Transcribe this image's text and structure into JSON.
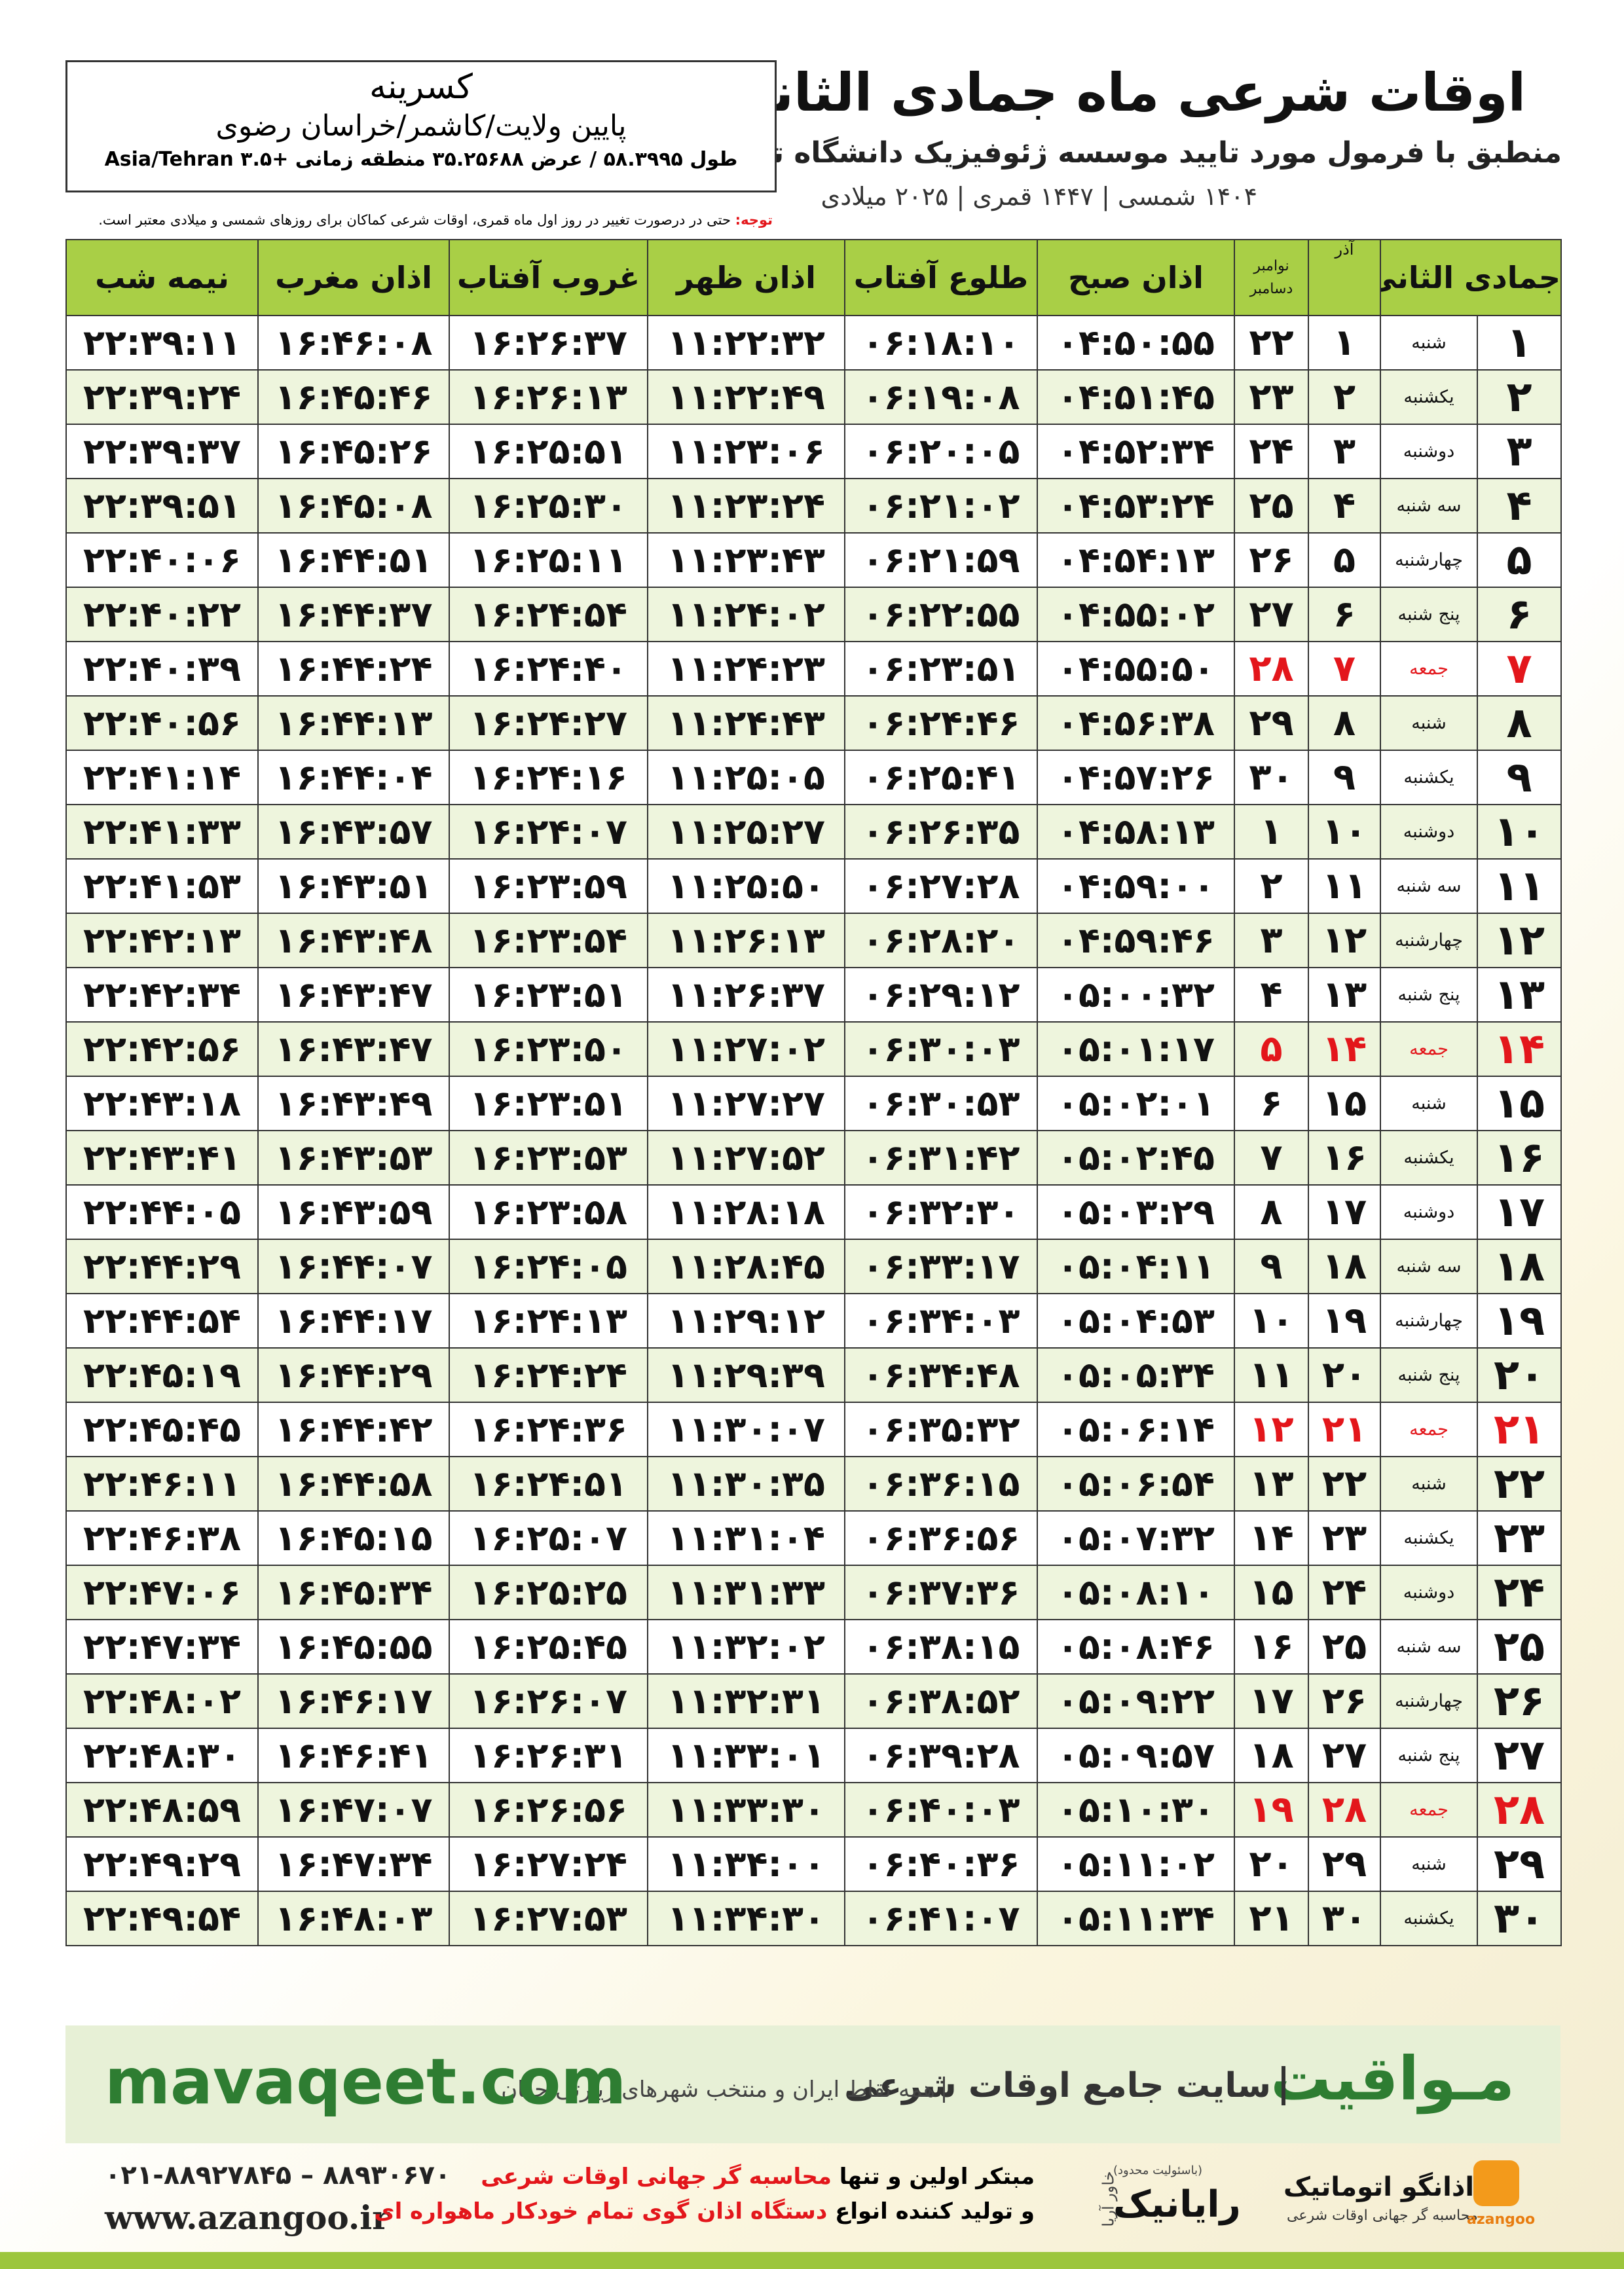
{
  "header": {
    "title": "اوقات شرعی ماه جمادی الثانی",
    "subtitle": "منطبق با فرمول مورد تایید موسسه ژئوفیزیک دانشگاه تهران",
    "date_line": "۱۴۰۴ شمسی | ۱۴۴۷ قمری | ۲۰۲۵ میلادی"
  },
  "location": {
    "name": "کسرینه",
    "region": "پایین ولایت/کاشمر/خراسان رضوی",
    "coords": "طول ۵۸.۳۹۹۵ / عرض ۳۵.۲۵۶۸۸ منطقه زمانی +۳.۵ Asia/Tehran"
  },
  "note": {
    "label": "توجه:",
    "text": "حتی در درصورت تغییر در روز اول ماه قمری، اوقات شرعی کماکان برای روزهای شمسی و میلادی معتبر است."
  },
  "table": {
    "header_color": "#a9cf46",
    "stripe_color": "#eef5dd",
    "holiday_color": "#e3161b",
    "columns": [
      "جمادی الثانی",
      "",
      "آذر",
      [
        "نوامبر",
        "دسامبر"
      ],
      "اذان صبح",
      "طلوع آفتاب",
      "اذان ظهر",
      "غروب آفتاب",
      "اذان مغرب",
      "نیمه شب"
    ],
    "rows": [
      {
        "cells": [
          "۱",
          "شنبه",
          "۱",
          "۲۲",
          "۰۴:۵۰:۵۵",
          "۰۶:۱۸:۱۰",
          "۱۱:۲۲:۳۲",
          "۱۶:۲۶:۳۷",
          "۱۶:۴۶:۰۸",
          "۲۲:۳۹:۱۱"
        ]
      },
      {
        "cells": [
          "۲",
          "یکشنبه",
          "۲",
          "۲۳",
          "۰۴:۵۱:۴۵",
          "۰۶:۱۹:۰۸",
          "۱۱:۲۲:۴۹",
          "۱۶:۲۶:۱۳",
          "۱۶:۴۵:۴۶",
          "۲۲:۳۹:۲۴"
        ]
      },
      {
        "cells": [
          "۳",
          "دوشنبه",
          "۳",
          "۲۴",
          "۰۴:۵۲:۳۴",
          "۰۶:۲۰:۰۵",
          "۱۱:۲۳:۰۶",
          "۱۶:۲۵:۵۱",
          "۱۶:۴۵:۲۶",
          "۲۲:۳۹:۳۷"
        ]
      },
      {
        "cells": [
          "۴",
          "سه شنبه",
          "۴",
          "۲۵",
          "۰۴:۵۳:۲۴",
          "۰۶:۲۱:۰۲",
          "۱۱:۲۳:۲۴",
          "۱۶:۲۵:۳۰",
          "۱۶:۴۵:۰۸",
          "۲۲:۳۹:۵۱"
        ]
      },
      {
        "cells": [
          "۵",
          "چهارشنبه",
          "۵",
          "۲۶",
          "۰۴:۵۴:۱۳",
          "۰۶:۲۱:۵۹",
          "۱۱:۲۳:۴۳",
          "۱۶:۲۵:۱۱",
          "۱۶:۴۴:۵۱",
          "۲۲:۴۰:۰۶"
        ]
      },
      {
        "cells": [
          "۶",
          "پنج شنبه",
          "۶",
          "۲۷",
          "۰۴:۵۵:۰۲",
          "۰۶:۲۲:۵۵",
          "۱۱:۲۴:۰۲",
          "۱۶:۲۴:۵۴",
          "۱۶:۴۴:۳۷",
          "۲۲:۴۰:۲۲"
        ]
      },
      {
        "cells": [
          "۷",
          "جمعه",
          "۷",
          "۲۸",
          "۰۴:۵۵:۵۰",
          "۰۶:۲۳:۵۱",
          "۱۱:۲۴:۲۳",
          "۱۶:۲۴:۴۰",
          "۱۶:۴۴:۲۴",
          "۲۲:۴۰:۳۹"
        ],
        "holiday": true
      },
      {
        "cells": [
          "۸",
          "شنبه",
          "۸",
          "۲۹",
          "۰۴:۵۶:۳۸",
          "۰۶:۲۴:۴۶",
          "۱۱:۲۴:۴۳",
          "۱۶:۲۴:۲۷",
          "۱۶:۴۴:۱۳",
          "۲۲:۴۰:۵۶"
        ]
      },
      {
        "cells": [
          "۹",
          "یکشنبه",
          "۹",
          "۳۰",
          "۰۴:۵۷:۲۶",
          "۰۶:۲۵:۴۱",
          "۱۱:۲۵:۰۵",
          "۱۶:۲۴:۱۶",
          "۱۶:۴۴:۰۴",
          "۲۲:۴۱:۱۴"
        ]
      },
      {
        "cells": [
          "۱۰",
          "دوشنبه",
          "۱۰",
          "۱",
          "۰۴:۵۸:۱۳",
          "۰۶:۲۶:۳۵",
          "۱۱:۲۵:۲۷",
          "۱۶:۲۴:۰۷",
          "۱۶:۴۳:۵۷",
          "۲۲:۴۱:۳۳"
        ]
      },
      {
        "cells": [
          "۱۱",
          "سه شنبه",
          "۱۱",
          "۲",
          "۰۴:۵۹:۰۰",
          "۰۶:۲۷:۲۸",
          "۱۱:۲۵:۵۰",
          "۱۶:۲۳:۵۹",
          "۱۶:۴۳:۵۱",
          "۲۲:۴۱:۵۳"
        ]
      },
      {
        "cells": [
          "۱۲",
          "چهارشنبه",
          "۱۲",
          "۳",
          "۰۴:۵۹:۴۶",
          "۰۶:۲۸:۲۰",
          "۱۱:۲۶:۱۳",
          "۱۶:۲۳:۵۴",
          "۱۶:۴۳:۴۸",
          "۲۲:۴۲:۱۳"
        ]
      },
      {
        "cells": [
          "۱۳",
          "پنج شنبه",
          "۱۳",
          "۴",
          "۰۵:۰۰:۳۲",
          "۰۶:۲۹:۱۲",
          "۱۱:۲۶:۳۷",
          "۱۶:۲۳:۵۱",
          "۱۶:۴۳:۴۷",
          "۲۲:۴۲:۳۴"
        ]
      },
      {
        "cells": [
          "۱۴",
          "جمعه",
          "۱۴",
          "۵",
          "۰۵:۰۱:۱۷",
          "۰۶:۳۰:۰۳",
          "۱۱:۲۷:۰۲",
          "۱۶:۲۳:۵۰",
          "۱۶:۴۳:۴۷",
          "۲۲:۴۲:۵۶"
        ],
        "holiday": true
      },
      {
        "cells": [
          "۱۵",
          "شنبه",
          "۱۵",
          "۶",
          "۰۵:۰۲:۰۱",
          "۰۶:۳۰:۵۳",
          "۱۱:۲۷:۲۷",
          "۱۶:۲۳:۵۱",
          "۱۶:۴۳:۴۹",
          "۲۲:۴۳:۱۸"
        ]
      },
      {
        "cells": [
          "۱۶",
          "یکشنبه",
          "۱۶",
          "۷",
          "۰۵:۰۲:۴۵",
          "۰۶:۳۱:۴۲",
          "۱۱:۲۷:۵۲",
          "۱۶:۲۳:۵۳",
          "۱۶:۴۳:۵۳",
          "۲۲:۴۳:۴۱"
        ]
      },
      {
        "cells": [
          "۱۷",
          "دوشنبه",
          "۱۷",
          "۸",
          "۰۵:۰۳:۲۹",
          "۰۶:۳۲:۳۰",
          "۱۱:۲۸:۱۸",
          "۱۶:۲۳:۵۸",
          "۱۶:۴۳:۵۹",
          "۲۲:۴۴:۰۵"
        ]
      },
      {
        "cells": [
          "۱۸",
          "سه شنبه",
          "۱۸",
          "۹",
          "۰۵:۰۴:۱۱",
          "۰۶:۳۳:۱۷",
          "۱۱:۲۸:۴۵",
          "۱۶:۲۴:۰۵",
          "۱۶:۴۴:۰۷",
          "۲۲:۴۴:۲۹"
        ]
      },
      {
        "cells": [
          "۱۹",
          "چهارشنبه",
          "۱۹",
          "۱۰",
          "۰۵:۰۴:۵۳",
          "۰۶:۳۴:۰۳",
          "۱۱:۲۹:۱۲",
          "۱۶:۲۴:۱۳",
          "۱۶:۴۴:۱۷",
          "۲۲:۴۴:۵۴"
        ]
      },
      {
        "cells": [
          "۲۰",
          "پنج شنبه",
          "۲۰",
          "۱۱",
          "۰۵:۰۵:۳۴",
          "۰۶:۳۴:۴۸",
          "۱۱:۲۹:۳۹",
          "۱۶:۲۴:۲۴",
          "۱۶:۴۴:۲۹",
          "۲۲:۴۵:۱۹"
        ]
      },
      {
        "cells": [
          "۲۱",
          "جمعه",
          "۲۱",
          "۱۲",
          "۰۵:۰۶:۱۴",
          "۰۶:۳۵:۳۲",
          "۱۱:۳۰:۰۷",
          "۱۶:۲۴:۳۶",
          "۱۶:۴۴:۴۲",
          "۲۲:۴۵:۴۵"
        ],
        "holiday": true
      },
      {
        "cells": [
          "۲۲",
          "شنبه",
          "۲۲",
          "۱۳",
          "۰۵:۰۶:۵۴",
          "۰۶:۳۶:۱۵",
          "۱۱:۳۰:۳۵",
          "۱۶:۲۴:۵۱",
          "۱۶:۴۴:۵۸",
          "۲۲:۴۶:۱۱"
        ]
      },
      {
        "cells": [
          "۲۳",
          "یکشنبه",
          "۲۳",
          "۱۴",
          "۰۵:۰۷:۳۲",
          "۰۶:۳۶:۵۶",
          "۱۱:۳۱:۰۴",
          "۱۶:۲۵:۰۷",
          "۱۶:۴۵:۱۵",
          "۲۲:۴۶:۳۸"
        ]
      },
      {
        "cells": [
          "۲۴",
          "دوشنبه",
          "۲۴",
          "۱۵",
          "۰۵:۰۸:۱۰",
          "۰۶:۳۷:۳۶",
          "۱۱:۳۱:۳۳",
          "۱۶:۲۵:۲۵",
          "۱۶:۴۵:۳۴",
          "۲۲:۴۷:۰۶"
        ]
      },
      {
        "cells": [
          "۲۵",
          "سه شنبه",
          "۲۵",
          "۱۶",
          "۰۵:۰۸:۴۶",
          "۰۶:۳۸:۱۵",
          "۱۱:۳۲:۰۲",
          "۱۶:۲۵:۴۵",
          "۱۶:۴۵:۵۵",
          "۲۲:۴۷:۳۴"
        ]
      },
      {
        "cells": [
          "۲۶",
          "چهارشنبه",
          "۲۶",
          "۱۷",
          "۰۵:۰۹:۲۲",
          "۰۶:۳۸:۵۲",
          "۱۱:۳۲:۳۱",
          "۱۶:۲۶:۰۷",
          "۱۶:۴۶:۱۷",
          "۲۲:۴۸:۰۲"
        ]
      },
      {
        "cells": [
          "۲۷",
          "پنج شنبه",
          "۲۷",
          "۱۸",
          "۰۵:۰۹:۵۷",
          "۰۶:۳۹:۲۸",
          "۱۱:۳۳:۰۱",
          "۱۶:۲۶:۳۱",
          "۱۶:۴۶:۴۱",
          "۲۲:۴۸:۳۰"
        ]
      },
      {
        "cells": [
          "۲۸",
          "جمعه",
          "۲۸",
          "۱۹",
          "۰۵:۱۰:۳۰",
          "۰۶:۴۰:۰۳",
          "۱۱:۳۳:۳۰",
          "۱۶:۲۶:۵۶",
          "۱۶:۴۷:۰۷",
          "۲۲:۴۸:۵۹"
        ],
        "holiday": true
      },
      {
        "cells": [
          "۲۹",
          "شنبه",
          "۲۹",
          "۲۰",
          "۰۵:۱۱:۰۲",
          "۰۶:۴۰:۳۶",
          "۱۱:۳۴:۰۰",
          "۱۶:۲۷:۲۴",
          "۱۶:۴۷:۳۴",
          "۲۲:۴۹:۲۹"
        ]
      },
      {
        "cells": [
          "۳۰",
          "یکشنبه",
          "۳۰",
          "۲۱",
          "۰۵:۱۱:۳۴",
          "۰۶:۴۱:۰۷",
          "۱۱:۳۴:۳۰",
          "۱۶:۲۷:۵۳",
          "۱۶:۴۸:۰۳",
          "۲۲:۴۹:۵۴"
        ]
      }
    ]
  },
  "banner": {
    "url": "mavaqeet.com",
    "brand": "مـواقیت",
    "tagline": "سایت جامع اوقات شرعی",
    "coverage": "همه نقاط ایران و منتخب شهرهای زیارتی جهان"
  },
  "footer": {
    "phones": "۰۲۱-۸۸۹۲۷۸۴۵ – ۸۸۹۳۰۶۷۰",
    "website": "www.azangoo.ir",
    "line1_a": "مبتکر اولین و تنها",
    "line1_b": "محاسبه گر جهانی اوقات شرعی",
    "line2_a": "و تولید کننده انواع",
    "line2_b": "دستگاه اذان گوی تمام خودکار ماهواره ای",
    "company1_note": "(باسئولیت محدود)",
    "company1": "رایانیک",
    "company1_sub": "خاور آریا",
    "company2": "اذانگو اتوماتیک",
    "company2_sub": "محاسبه گر جهانی اوقات شرعی",
    "company2_logo": "azangoo"
  }
}
